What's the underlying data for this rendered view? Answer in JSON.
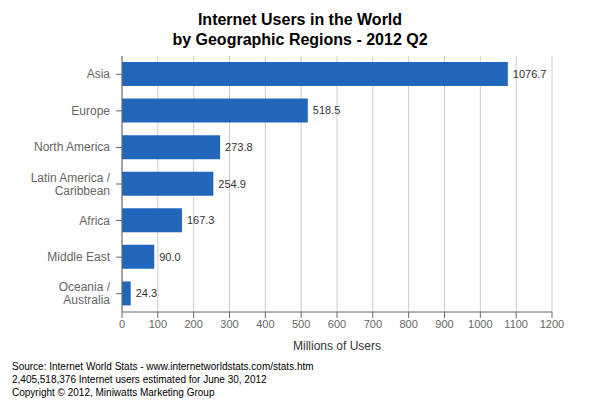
{
  "chart_data": {
    "type": "bar",
    "orientation": "horizontal",
    "title": "Internet Users in the World",
    "subtitle": "by Geographic Regions - 2012 Q2",
    "categories": [
      "Asia",
      "Europe",
      "North America",
      "Latin America /\nCaribbean",
      "Africa",
      "Middle East",
      "Oceania /\nAustralia"
    ],
    "values": [
      1076.7,
      518.5,
      273.8,
      254.9,
      167.3,
      90.0,
      24.3
    ],
    "value_labels": [
      "1076.7",
      "518.5",
      "273.8",
      "254.9",
      "167.3",
      "90.0",
      "24.3"
    ],
    "data_labels": true,
    "color": "#2266bb",
    "xlim": [
      0,
      1200
    ],
    "xticks": [
      0,
      100,
      200,
      300,
      400,
      500,
      600,
      700,
      800,
      900,
      1000,
      1100,
      1200
    ],
    "xlabel": "Millions of Users",
    "grid": true,
    "annotations": [
      "Source: Internet World Stats - www.internetworldstats.com/stats.htm",
      "2,405,518,376 Internet users estimated for June 30, 2012",
      "Copyright © 2012, Miniwatts Marketing Group"
    ]
  }
}
